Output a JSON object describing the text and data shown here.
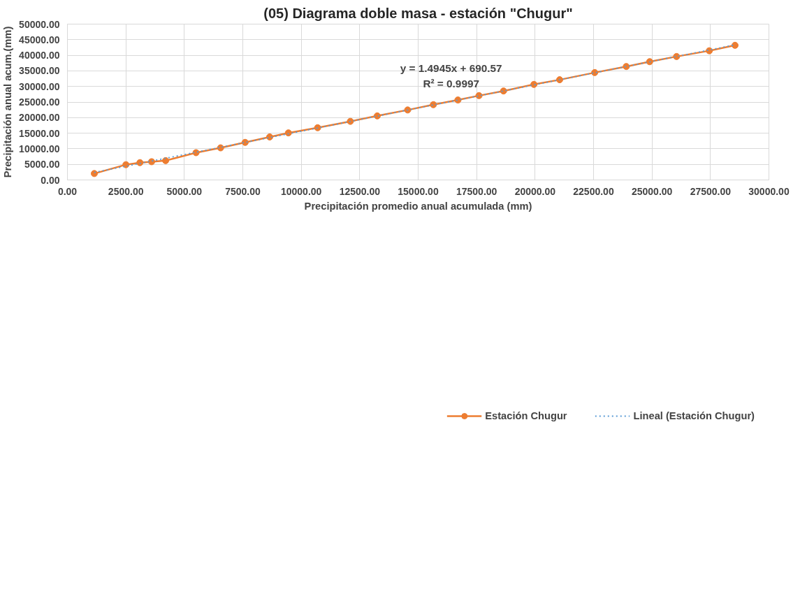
{
  "chart_data": {
    "type": "line",
    "title": "(05) Diagrama doble masa - estación \"Chugur\"",
    "xlabel": "Precipitación promedio anual acumulada (mm)",
    "ylabel": "Precipitación anual acum.(mm)",
    "annotations": [
      "y = 1.4945x + 690.57",
      "R² = 0.9997"
    ],
    "series": [
      {
        "name": "Estación Chugur",
        "color": "#ed7d31",
        "marker": "circle",
        "line_style": "solid",
        "x": [
          1150,
          2500,
          3100,
          3600,
          4200,
          5500,
          6550,
          7600,
          8650,
          9450,
          10700,
          12100,
          13250,
          14550,
          15650,
          16700,
          17600,
          18650,
          19950,
          21050,
          22550,
          23900,
          24900,
          26050,
          27450,
          28550
        ],
        "values": [
          2050,
          4900,
          5550,
          5850,
          6200,
          8750,
          10300,
          12050,
          13800,
          15100,
          16750,
          18800,
          20550,
          22450,
          24150,
          25650,
          27050,
          28550,
          30650,
          32150,
          34450,
          36400,
          37950,
          39600,
          41450,
          43200
        ]
      },
      {
        "name": "Lineal (Estación Chugur)",
        "color": "#5b9bd5",
        "marker": "none",
        "line_style": "dotted",
        "x": [
          1150,
          28550
        ],
        "values": [
          2400,
          43350
        ]
      }
    ],
    "xlim": [
      0,
      30000
    ],
    "ylim": [
      0,
      50000
    ],
    "xticks": [
      {
        "value": 0,
        "label": "0.00"
      },
      {
        "value": 2500,
        "label": "2500.00"
      },
      {
        "value": 5000,
        "label": "5000.00"
      },
      {
        "value": 7500,
        "label": "7500.00"
      },
      {
        "value": 10000,
        "label": "10000.00"
      },
      {
        "value": 12500,
        "label": "12500.00"
      },
      {
        "value": 15000,
        "label": "15000.00"
      },
      {
        "value": 17500,
        "label": "17500.00"
      },
      {
        "value": 20000,
        "label": "20000.00"
      },
      {
        "value": 22500,
        "label": "22500.00"
      },
      {
        "value": 25000,
        "label": "25000.00"
      },
      {
        "value": 27500,
        "label": "27500.00"
      },
      {
        "value": 30000,
        "label": "30000.00"
      }
    ],
    "yticks": [
      {
        "value": 0,
        "label": "0.00"
      },
      {
        "value": 5000,
        "label": "5000.00"
      },
      {
        "value": 10000,
        "label": "10000.00"
      },
      {
        "value": 15000,
        "label": "15000.00"
      },
      {
        "value": 20000,
        "label": "20000.00"
      },
      {
        "value": 25000,
        "label": "25000.00"
      },
      {
        "value": 30000,
        "label": "30000.00"
      },
      {
        "value": 35000,
        "label": "35000.00"
      },
      {
        "value": 40000,
        "label": "40000.00"
      },
      {
        "value": 45000,
        "label": "45000.00"
      },
      {
        "value": 50000,
        "label": "50000.00"
      }
    ],
    "grid": true,
    "legend": "bottom"
  }
}
